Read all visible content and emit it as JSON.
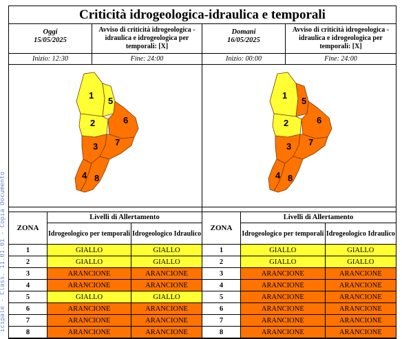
{
  "title": "Criticità idrogeologica-idraulica e temporali",
  "watermark": "icipale - Class. 11.01.01 - Copia Documento",
  "panels": [
    {
      "day": "Oggi",
      "date": "15/05/2025",
      "notice": "Avviso di criticità idrogeologica - idraulica e idrogeologica per temporali: [X]",
      "start": "Inizio: 12:30",
      "end": "Fine: 24:00",
      "map_zone_colors": {
        "1": "GIALLO",
        "2": "GIALLO",
        "3": "ARANCIONE",
        "4": "ARANCIONE",
        "5": "GIALLO",
        "6": "ARANCIONE",
        "7": "ARANCIONE",
        "8": "ARANCIONE"
      },
      "table": {
        "zona_header": "ZONA",
        "levels_header": "Livelli di Allertamento",
        "col1_header": "Idrogeologico per temporali",
        "col2_header": "Idrogeologico Idraulico",
        "rows": [
          {
            "zona": "1",
            "c1": "GIALLO",
            "c2": "GIALLO"
          },
          {
            "zona": "2",
            "c1": "GIALLO",
            "c2": "GIALLO"
          },
          {
            "zona": "3",
            "c1": "ARANCIONE",
            "c2": "ARANCIONE"
          },
          {
            "zona": "4",
            "c1": "ARANCIONE",
            "c2": "ARANCIONE"
          },
          {
            "zona": "5",
            "c1": "GIALLO",
            "c2": "GIALLO"
          },
          {
            "zona": "6",
            "c1": "ARANCIONE",
            "c2": "ARANCIONE"
          },
          {
            "zona": "7",
            "c1": "ARANCIONE",
            "c2": "ARANCIONE"
          },
          {
            "zona": "8",
            "c1": "ARANCIONE",
            "c2": "ARANCIONE"
          }
        ]
      }
    },
    {
      "day": "Domani",
      "date": "16/05/2025",
      "notice": "Avviso di criticità idrogeologica - idraulica e idrogeologica per temporali: [X]",
      "start": "Inizio: 00:00",
      "end": "Fine: 24:00",
      "map_zone_colors": {
        "1": "GIALLO",
        "2": "GIALLO",
        "3": "ARANCIONE",
        "4": "ARANCIONE",
        "5": "ARANCIONE",
        "6": "ARANCIONE",
        "7": "ARANCIONE",
        "8": "ARANCIONE"
      },
      "table": {
        "zona_header": "ZONA",
        "levels_header": "Livelli di Allertamento",
        "col1_header": "Idrogeologico per temporali",
        "col2_header": "Idrogeologico Idraulico",
        "rows": [
          {
            "zona": "1",
            "c1": "GIALLO",
            "c2": "GIALLO"
          },
          {
            "zona": "2",
            "c1": "GIALLO",
            "c2": "GIALLO"
          },
          {
            "zona": "3",
            "c1": "ARANCIONE",
            "c2": "ARANCIONE"
          },
          {
            "zona": "4",
            "c1": "ARANCIONE",
            "c2": "ARANCIONE"
          },
          {
            "zona": "5",
            "c1": "ARANCIONE",
            "c2": "ARANCIONE"
          },
          {
            "zona": "6",
            "c1": "ARANCIONE",
            "c2": "ARANCIONE"
          },
          {
            "zona": "7",
            "c1": "ARANCIONE",
            "c2": "ARANCIONE"
          },
          {
            "zona": "8",
            "c1": "ARANCIONE",
            "c2": "ARANCIONE"
          }
        ]
      }
    }
  ],
  "colors": {
    "GIALLO": "#ffff33",
    "ARANCIONE": "#ff7300",
    "border": "#7a3a00",
    "watermark": "#6a8cc7"
  }
}
